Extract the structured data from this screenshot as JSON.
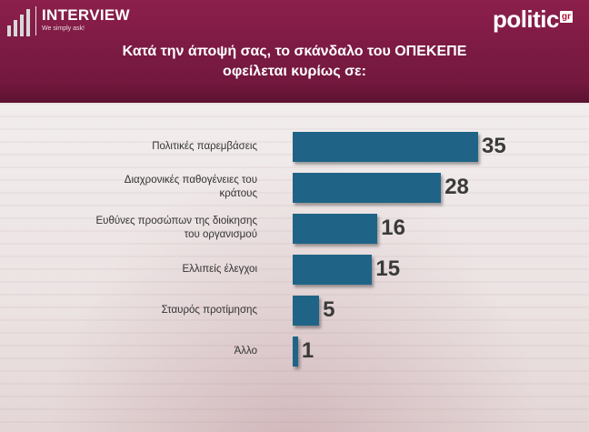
{
  "header": {
    "brand": "INTERVIEW",
    "tagline": "We simply ask!",
    "publisher": "politic",
    "publisher_suffix": "gr",
    "title_line1": "Κατά την άποψή σας, το σκάνδαλο του ΟΠΕΚΕΠΕ",
    "title_line2": "οφείλεται κυρίως σε:"
  },
  "colors": {
    "header": "#7a1a42",
    "bar": "#1f6486",
    "value_text": "#3a3a3a"
  },
  "chart_data": {
    "type": "bar",
    "orientation": "horizontal",
    "title": "Κατά την άποψή σας, το σκάνδαλο του ΟΠΕΚΕΠΕ οφείλεται κυρίως σε:",
    "categories": [
      [
        "Πολιτικές παρεμβάσεις"
      ],
      [
        "Διαχρονικές παθογένειες του",
        "κράτους"
      ],
      [
        "Ευθύνες προσώπων της διοίκησης",
        "του οργανισμού"
      ],
      [
        "Ελλιπείς έλεγχοι"
      ],
      [
        "Σταυρός προτίμησης"
      ],
      [
        "Άλλο"
      ]
    ],
    "values": [
      35,
      28,
      16,
      15,
      5,
      1
    ],
    "value_labels": [
      "35",
      "28",
      "16",
      "15",
      "5",
      "1"
    ],
    "xlim": [
      0,
      35
    ],
    "grid": false,
    "legend": "none"
  }
}
